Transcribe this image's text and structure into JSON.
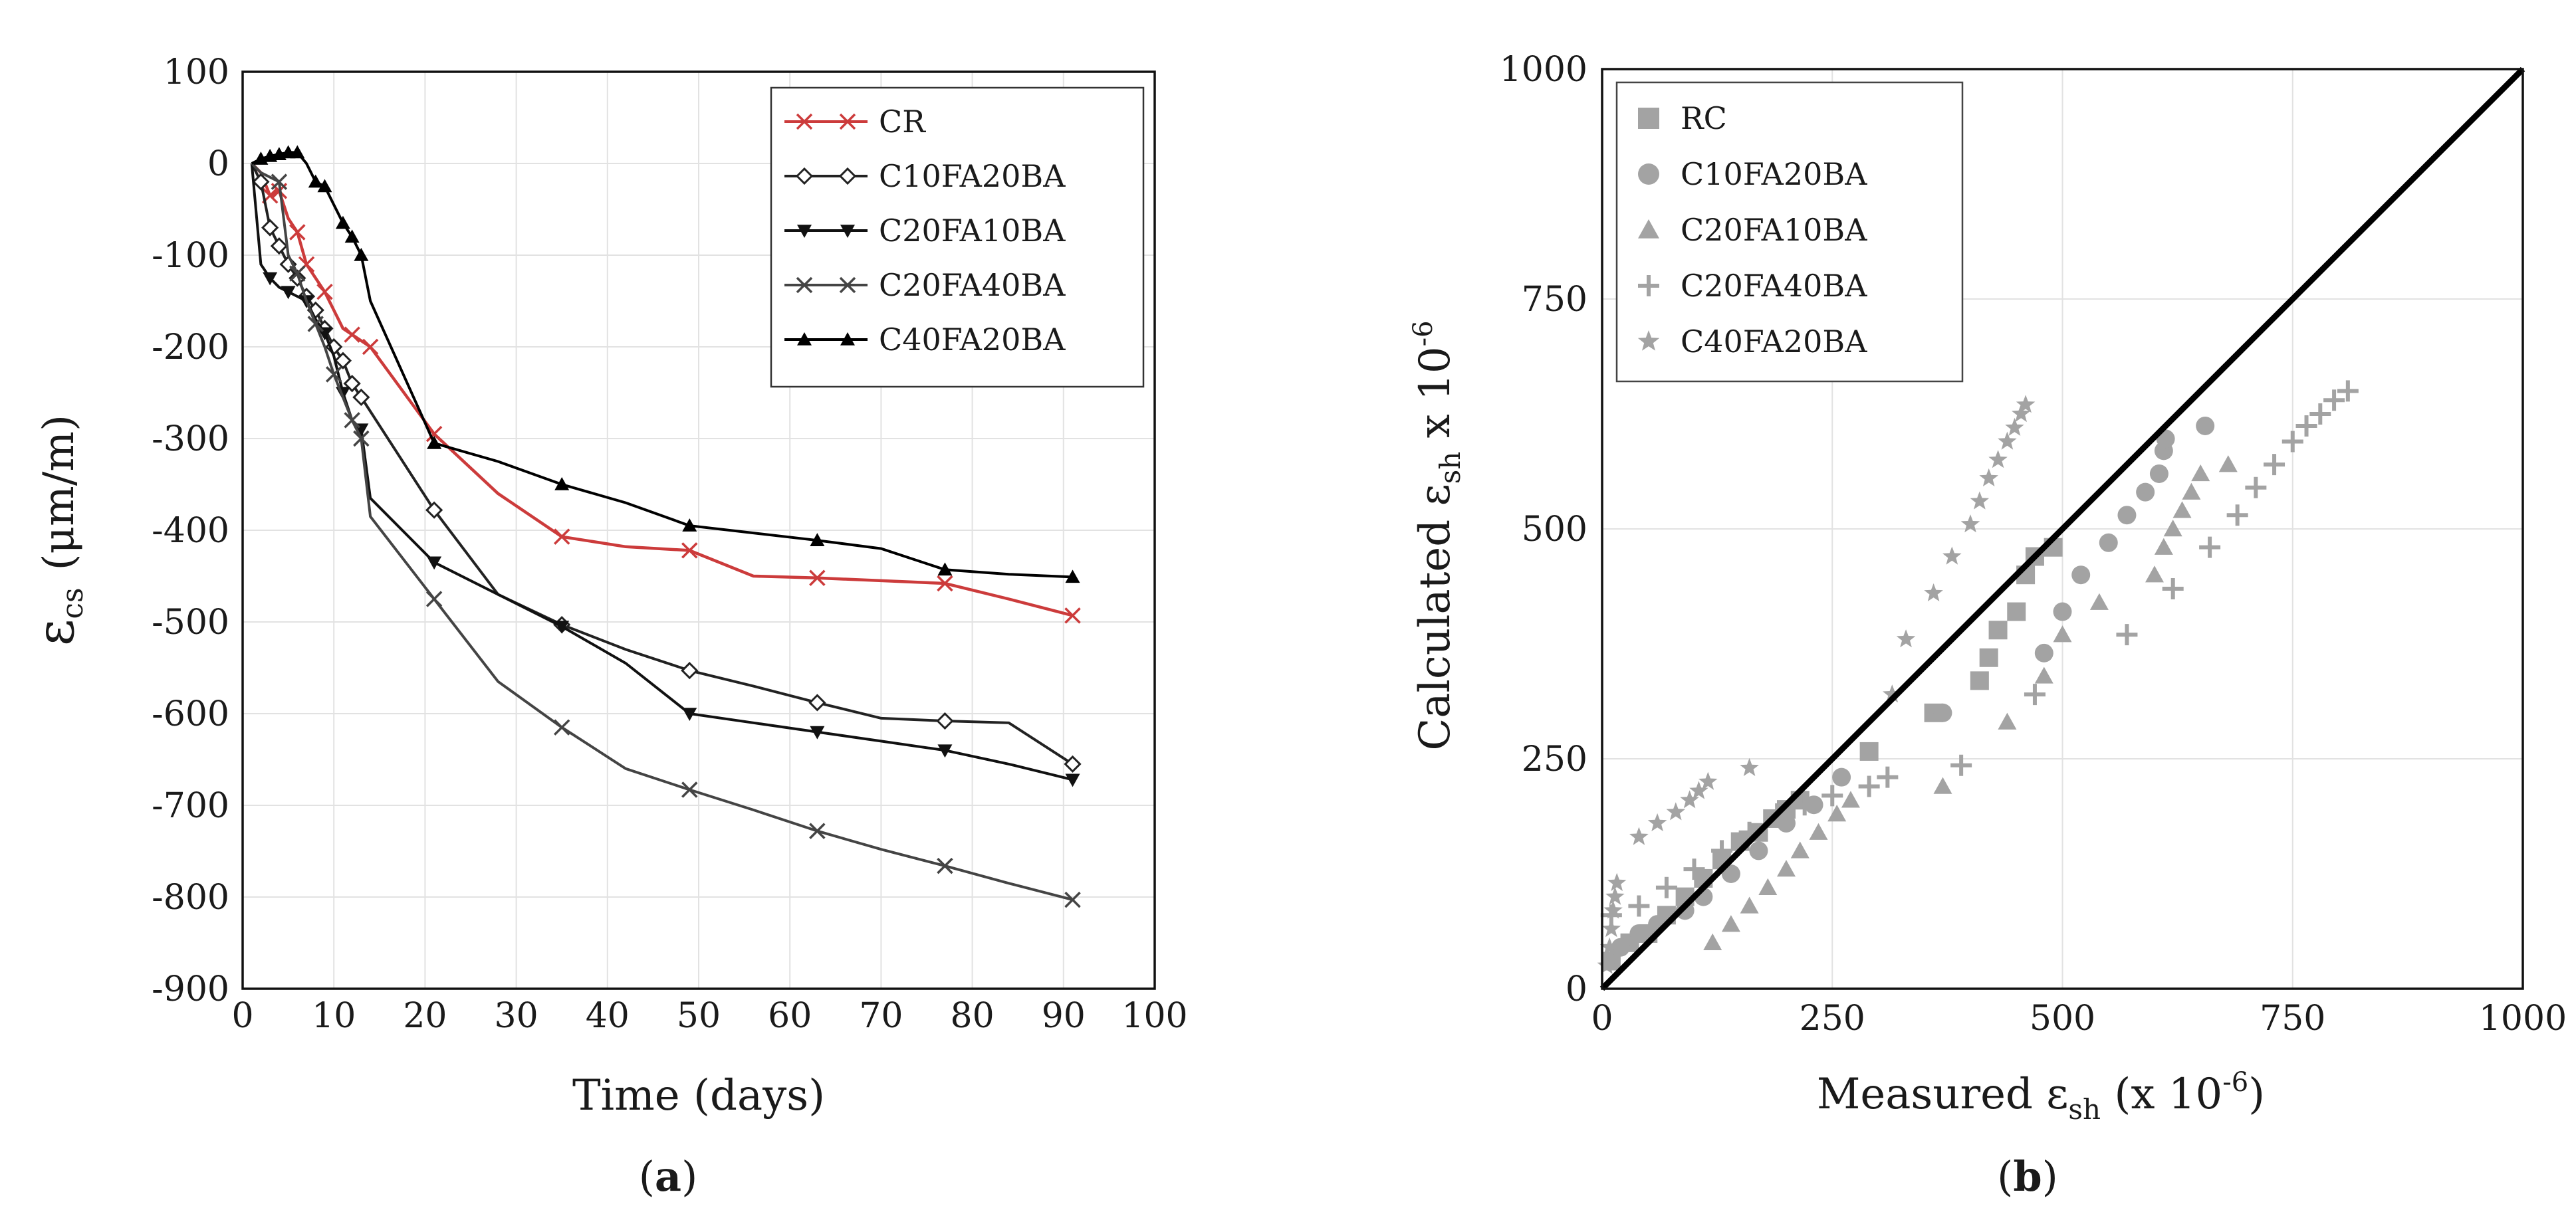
{
  "chart_data": [
    {
      "type": "line",
      "caption": "(a)",
      "caption_open": "(",
      "caption_letter": "a",
      "caption_close": ")",
      "xlabel": "Time (days)",
      "ylabel_main": "ε",
      "ylabel_sub": "cs",
      "ylabel_unit": "(μm/m)",
      "xlim": [
        0,
        100
      ],
      "ylim": [
        -900,
        100
      ],
      "xticks": [
        0,
        10,
        20,
        30,
        40,
        50,
        60,
        70,
        80,
        90,
        100
      ],
      "yticks": [
        100,
        0,
        -100,
        -200,
        -300,
        -400,
        -500,
        -600,
        -700,
        -800,
        -900
      ],
      "grid": true,
      "legend_position": "top-right",
      "series": [
        {
          "name": "CR",
          "color": "#cc3b3b",
          "marker": "x",
          "marker_x": [
            3,
            4,
            6,
            7,
            9,
            12,
            14,
            21,
            35,
            49,
            63,
            77,
            91
          ],
          "points": [
            [
              1,
              0
            ],
            [
              2,
              -10
            ],
            [
              3,
              -35
            ],
            [
              4,
              -30
            ],
            [
              5,
              -60
            ],
            [
              6,
              -75
            ],
            [
              7,
              -110
            ],
            [
              9,
              -140
            ],
            [
              11,
              -180
            ],
            [
              14,
              -200
            ],
            [
              21,
              -295
            ],
            [
              28,
              -360
            ],
            [
              35,
              -407
            ],
            [
              42,
              -418
            ],
            [
              49,
              -422
            ],
            [
              56,
              -450
            ],
            [
              63,
              -452
            ],
            [
              70,
              -455
            ],
            [
              77,
              -458
            ],
            [
              84,
              -475
            ],
            [
              91,
              -493
            ]
          ]
        },
        {
          "name": "C10FA20BA",
          "color": "#222222",
          "marker": "diamond",
          "marker_x": [
            2,
            3,
            4,
            5,
            6,
            7,
            8,
            9,
            10,
            11,
            12,
            13,
            21,
            35,
            49,
            63,
            77,
            91
          ],
          "points": [
            [
              1,
              0
            ],
            [
              2,
              -20
            ],
            [
              3,
              -70
            ],
            [
              4,
              -90
            ],
            [
              5,
              -110
            ],
            [
              6,
              -125
            ],
            [
              7,
              -145
            ],
            [
              8,
              -160
            ],
            [
              9,
              -180
            ],
            [
              10,
              -200
            ],
            [
              11,
              -215
            ],
            [
              12,
              -240
            ],
            [
              13,
              -255
            ],
            [
              21,
              -378
            ],
            [
              28,
              -470
            ],
            [
              35,
              -503
            ],
            [
              42,
              -530
            ],
            [
              49,
              -553
            ],
            [
              56,
              -570
            ],
            [
              63,
              -588
            ],
            [
              70,
              -605
            ],
            [
              77,
              -608
            ],
            [
              84,
              -610
            ],
            [
              91,
              -655
            ]
          ]
        },
        {
          "name": "C20FA10BA",
          "color": "#111111",
          "marker": "triangle-down",
          "marker_x": [
            3,
            5,
            7,
            9,
            11,
            13,
            21,
            35,
            49,
            63,
            77,
            91
          ],
          "points": [
            [
              1,
              0
            ],
            [
              2,
              -110
            ],
            [
              3,
              -125
            ],
            [
              4,
              -135
            ],
            [
              5,
              -140
            ],
            [
              6,
              -145
            ],
            [
              7,
              -150
            ],
            [
              8,
              -170
            ],
            [
              9,
              -185
            ],
            [
              10,
              -210
            ],
            [
              11,
              -250
            ],
            [
              12,
              -280
            ],
            [
              13,
              -290
            ],
            [
              14,
              -365
            ],
            [
              21,
              -435
            ],
            [
              28,
              -470
            ],
            [
              35,
              -505
            ],
            [
              42,
              -545
            ],
            [
              49,
              -600
            ],
            [
              56,
              -610
            ],
            [
              63,
              -620
            ],
            [
              70,
              -630
            ],
            [
              77,
              -640
            ],
            [
              84,
              -655
            ],
            [
              91,
              -672
            ]
          ]
        },
        {
          "name": "C20FA40BA",
          "color": "#444444",
          "marker": "x",
          "marker_x": [
            4,
            6,
            8,
            10,
            12,
            13,
            21,
            35,
            49,
            63,
            77,
            91
          ],
          "points": [
            [
              1,
              0
            ],
            [
              2,
              -10
            ],
            [
              3,
              -15
            ],
            [
              4,
              -20
            ],
            [
              5,
              -100
            ],
            [
              6,
              -120
            ],
            [
              7,
              -150
            ],
            [
              8,
              -175
            ],
            [
              9,
              -200
            ],
            [
              10,
              -230
            ],
            [
              11,
              -255
            ],
            [
              12,
              -280
            ],
            [
              13,
              -300
            ],
            [
              14,
              -385
            ],
            [
              21,
              -475
            ],
            [
              28,
              -565
            ],
            [
              35,
              -615
            ],
            [
              42,
              -660
            ],
            [
              49,
              -683
            ],
            [
              56,
              -705
            ],
            [
              63,
              -728
            ],
            [
              70,
              -748
            ],
            [
              77,
              -766
            ],
            [
              84,
              -785
            ],
            [
              91,
              -803
            ]
          ]
        },
        {
          "name": "C40FA20BA",
          "color": "#000000",
          "marker": "triangle-up",
          "marker_x": [
            2,
            3,
            4,
            5,
            6,
            8,
            9,
            11,
            12,
            13,
            21,
            35,
            49,
            63,
            77,
            91
          ],
          "points": [
            [
              1,
              0
            ],
            [
              2,
              5
            ],
            [
              3,
              8
            ],
            [
              4,
              10
            ],
            [
              5,
              12
            ],
            [
              6,
              12
            ],
            [
              7,
              0
            ],
            [
              8,
              -20
            ],
            [
              9,
              -25
            ],
            [
              10,
              -45
            ],
            [
              11,
              -65
            ],
            [
              12,
              -80
            ],
            [
              13,
              -100
            ],
            [
              14,
              -150
            ],
            [
              21,
              -305
            ],
            [
              28,
              -325
            ],
            [
              35,
              -350
            ],
            [
              42,
              -370
            ],
            [
              49,
              -395
            ],
            [
              56,
              -403
            ],
            [
              63,
              -411
            ],
            [
              70,
              -420
            ],
            [
              77,
              -443
            ],
            [
              84,
              -448
            ],
            [
              91,
              -451
            ]
          ]
        }
      ]
    },
    {
      "type": "scatter",
      "caption": "(b)",
      "caption_open": "(",
      "caption_letter": "b",
      "caption_close": ")",
      "xlabel_pre": "Measured ε",
      "xlabel_sub": "sh",
      "xlabel_post": " (x 10",
      "xlabel_exp": "-6",
      "xlabel_end": ")",
      "ylabel_pre": "Calculated ε",
      "ylabel_sub": "sh",
      "ylabel_post": " x 10",
      "ylabel_exp": "-6",
      "xlim": [
        0,
        1000
      ],
      "ylim": [
        0,
        1000
      ],
      "xticks": [
        0,
        250,
        500,
        750,
        1000
      ],
      "yticks": [
        0,
        250,
        500,
        750,
        1000
      ],
      "grid": true,
      "legend_position": "top-left",
      "reference_line": [
        [
          0,
          0
        ],
        [
          1000,
          1000
        ]
      ],
      "series": [
        {
          "name": "RC",
          "color": "#a3a3a3",
          "marker": "square",
          "points": [
            [
              10,
              30
            ],
            [
              30,
              50
            ],
            [
              50,
              60
            ],
            [
              70,
              80
            ],
            [
              90,
              100
            ],
            [
              110,
              120
            ],
            [
              130,
              140
            ],
            [
              150,
              160
            ],
            [
              170,
              170
            ],
            [
              185,
              185
            ],
            [
              200,
              195
            ],
            [
              215,
              205
            ],
            [
              290,
              258
            ],
            [
              360,
              300
            ],
            [
              410,
              335
            ],
            [
              420,
              360
            ],
            [
              430,
              390
            ],
            [
              450,
              410
            ],
            [
              460,
              450
            ],
            [
              470,
              470
            ],
            [
              490,
              480
            ]
          ]
        },
        {
          "name": "C10FA20BA",
          "color": "#a3a3a3",
          "marker": "circle",
          "points": [
            [
              20,
              45
            ],
            [
              40,
              60
            ],
            [
              60,
              70
            ],
            [
              90,
              85
            ],
            [
              110,
              100
            ],
            [
              140,
              125
            ],
            [
              170,
              150
            ],
            [
              200,
              180
            ],
            [
              230,
              200
            ],
            [
              260,
              230
            ],
            [
              370,
              300
            ],
            [
              480,
              365
            ],
            [
              500,
              410
            ],
            [
              520,
              450
            ],
            [
              550,
              485
            ],
            [
              570,
              515
            ],
            [
              590,
              540
            ],
            [
              605,
              560
            ],
            [
              610,
              585
            ],
            [
              612,
              598
            ],
            [
              655,
              612
            ]
          ]
        },
        {
          "name": "C20FA10BA",
          "color": "#a3a3a3",
          "marker": "triangle",
          "points": [
            [
              120,
              50
            ],
            [
              140,
              70
            ],
            [
              160,
              90
            ],
            [
              180,
              110
            ],
            [
              200,
              130
            ],
            [
              215,
              150
            ],
            [
              235,
              170
            ],
            [
              255,
              190
            ],
            [
              270,
              205
            ],
            [
              370,
              220
            ],
            [
              440,
              290
            ],
            [
              480,
              340
            ],
            [
              500,
              385
            ],
            [
              540,
              420
            ],
            [
              600,
              450
            ],
            [
              610,
              480
            ],
            [
              620,
              500
            ],
            [
              630,
              520
            ],
            [
              640,
              540
            ],
            [
              650,
              560
            ],
            [
              680,
              570
            ]
          ]
        },
        {
          "name": "C20FA40BA",
          "color": "#a3a3a3",
          "marker": "plus",
          "points": [
            [
              10,
              80
            ],
            [
              40,
              90
            ],
            [
              70,
              110
            ],
            [
              100,
              130
            ],
            [
              130,
              150
            ],
            [
              160,
              170
            ],
            [
              190,
              190
            ],
            [
              220,
              200
            ],
            [
              250,
              210
            ],
            [
              290,
              220
            ],
            [
              310,
              230
            ],
            [
              390,
              243
            ],
            [
              470,
              320
            ],
            [
              570,
              385
            ],
            [
              620,
              435
            ],
            [
              660,
              480
            ],
            [
              690,
              515
            ],
            [
              710,
              545
            ],
            [
              730,
              570
            ],
            [
              750,
              595
            ],
            [
              765,
              612
            ],
            [
              780,
              625
            ],
            [
              795,
              640
            ],
            [
              810,
              650
            ]
          ]
        },
        {
          "name": "C40FA20BA",
          "color": "#a3a3a3",
          "marker": "star",
          "points": [
            [
              5,
              25
            ],
            [
              8,
              45
            ],
            [
              10,
              65
            ],
            [
              12,
              85
            ],
            [
              14,
              100
            ],
            [
              16,
              115
            ],
            [
              40,
              165
            ],
            [
              60,
              180
            ],
            [
              80,
              192
            ],
            [
              95,
              205
            ],
            [
              105,
              215
            ],
            [
              115,
              225
            ],
            [
              160,
              240
            ],
            [
              315,
              320
            ],
            [
              330,
              380
            ],
            [
              360,
              430
            ],
            [
              380,
              470
            ],
            [
              400,
              505
            ],
            [
              410,
              530
            ],
            [
              420,
              555
            ],
            [
              430,
              575
            ],
            [
              440,
              595
            ],
            [
              448,
              610
            ],
            [
              455,
              625
            ],
            [
              460,
              635
            ]
          ]
        }
      ]
    }
  ]
}
